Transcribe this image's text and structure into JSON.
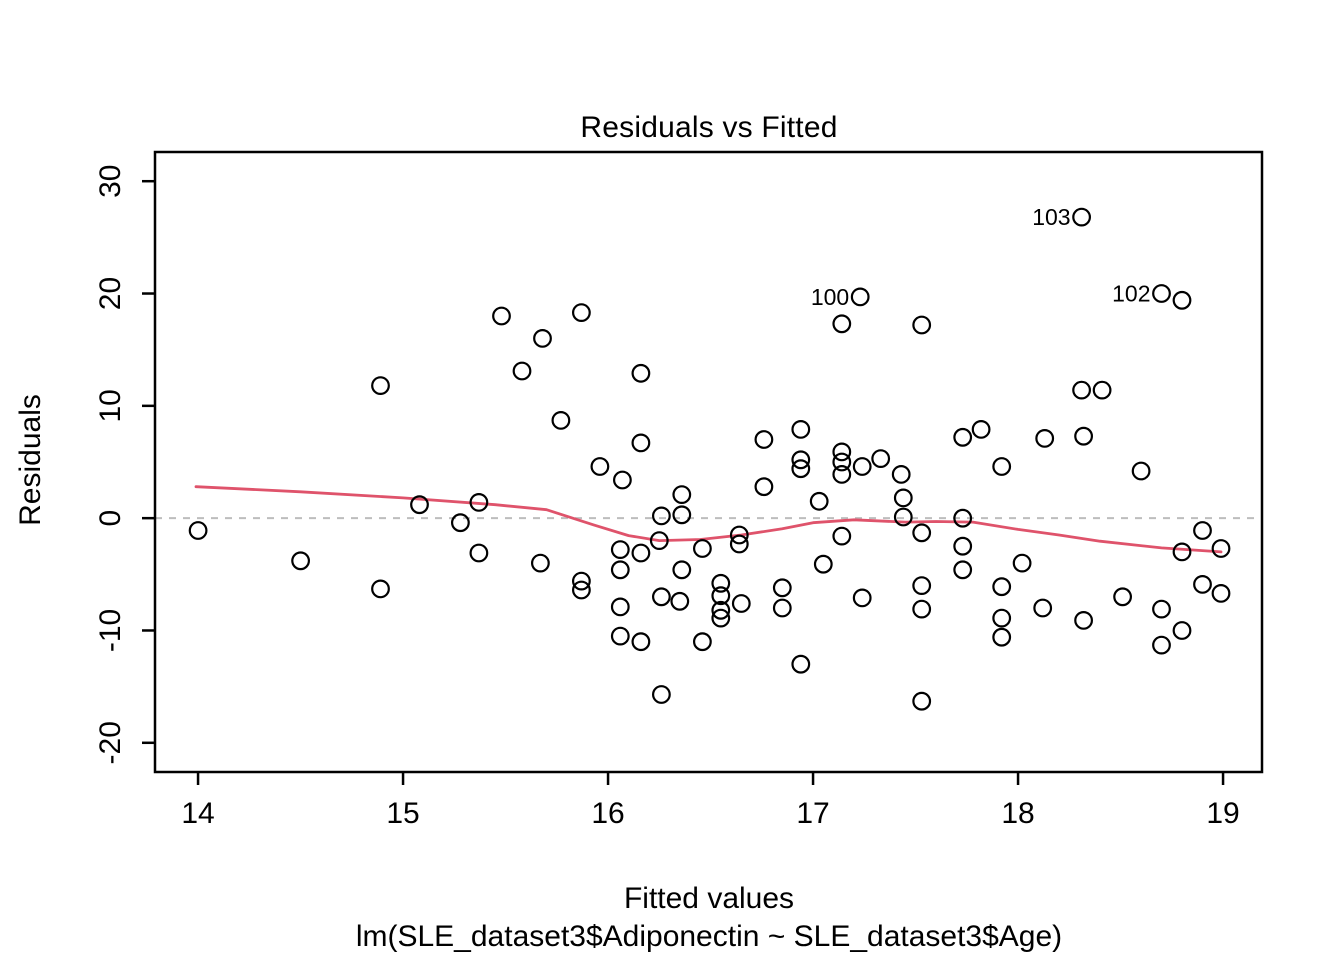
{
  "figure": {
    "title": "Residuals vs Fitted",
    "x_axis_label": "Fitted values",
    "x_axis_sublabel": "lm(SLE_dataset3$Adiponectin ~ SLE_dataset3$Age)",
    "y_axis_label": "Residuals"
  },
  "chart_data": {
    "type": "scatter",
    "title": "Residuals vs Fitted",
    "xlabel": "Fitted values",
    "xlabel_line2": "lm(SLE_dataset3$Adiponectin ~ SLE_dataset3$Age)",
    "ylabel": "Residuals",
    "xlim": [
      13.79,
      19.19
    ],
    "ylim": [
      -22.6,
      32.6
    ],
    "x_ticks": [
      14,
      15,
      16,
      17,
      18,
      19
    ],
    "y_ticks": [
      -20,
      -10,
      0,
      10,
      20,
      30
    ],
    "grid": false,
    "legend": false,
    "point_style": {
      "shape": "open-circle",
      "stroke_color": "#000000"
    },
    "zero_line": {
      "y": 0,
      "style": "dashed",
      "color": "#bdbdbd"
    },
    "points": [
      [
        14.0,
        -1.1
      ],
      [
        14.5,
        -3.8
      ],
      [
        14.89,
        11.8
      ],
      [
        14.89,
        -6.3
      ],
      [
        15.08,
        1.2
      ],
      [
        15.28,
        -0.4
      ],
      [
        15.37,
        1.4
      ],
      [
        15.37,
        -3.1
      ],
      [
        15.48,
        18.0
      ],
      [
        15.58,
        13.1
      ],
      [
        15.67,
        -4.0
      ],
      [
        15.68,
        16.0
      ],
      [
        15.77,
        8.7
      ],
      [
        15.87,
        18.3
      ],
      [
        15.87,
        -5.6
      ],
      [
        15.87,
        -6.4
      ],
      [
        15.96,
        4.6
      ],
      [
        16.06,
        -2.8
      ],
      [
        16.06,
        -4.6
      ],
      [
        16.06,
        -7.9
      ],
      [
        16.06,
        -10.5
      ],
      [
        16.07,
        3.4
      ],
      [
        16.16,
        12.9
      ],
      [
        16.16,
        6.7
      ],
      [
        16.16,
        -3.1
      ],
      [
        16.16,
        -11.0
      ],
      [
        16.25,
        -2.0
      ],
      [
        16.26,
        0.2
      ],
      [
        16.26,
        -7.0
      ],
      [
        16.26,
        -15.7
      ],
      [
        16.35,
        -7.4
      ],
      [
        16.36,
        2.1
      ],
      [
        16.36,
        0.3
      ],
      [
        16.36,
        -4.6
      ],
      [
        16.46,
        -2.7
      ],
      [
        16.46,
        -11.0
      ],
      [
        16.55,
        -5.8
      ],
      [
        16.55,
        -6.9
      ],
      [
        16.55,
        -8.2
      ],
      [
        16.55,
        -8.9
      ],
      [
        16.64,
        -1.5
      ],
      [
        16.64,
        -2.3
      ],
      [
        16.65,
        -7.6
      ],
      [
        16.76,
        2.8
      ],
      [
        16.76,
        7.0
      ],
      [
        16.85,
        -6.2
      ],
      [
        16.85,
        -8.0
      ],
      [
        16.94,
        7.9
      ],
      [
        16.94,
        5.2
      ],
      [
        16.94,
        4.4
      ],
      [
        16.94,
        -13.0
      ],
      [
        17.03,
        1.5
      ],
      [
        17.05,
        -4.1
      ],
      [
        17.14,
        17.3
      ],
      [
        17.14,
        5.9
      ],
      [
        17.14,
        5.0
      ],
      [
        17.14,
        3.9
      ],
      [
        17.14,
        -1.6
      ],
      [
        17.24,
        4.6
      ],
      [
        17.24,
        -7.1
      ],
      [
        17.33,
        5.3
      ],
      [
        17.43,
        3.9
      ],
      [
        17.44,
        1.8
      ],
      [
        17.44,
        0.1
      ],
      [
        17.53,
        17.2
      ],
      [
        17.53,
        -1.3
      ],
      [
        17.53,
        -6.0
      ],
      [
        17.53,
        -8.1
      ],
      [
        17.53,
        -16.3
      ],
      [
        17.73,
        7.2
      ],
      [
        17.73,
        0.0
      ],
      [
        17.73,
        -2.5
      ],
      [
        17.73,
        -4.6
      ],
      [
        17.82,
        7.9
      ],
      [
        17.92,
        4.6
      ],
      [
        17.92,
        -6.1
      ],
      [
        17.92,
        -8.9
      ],
      [
        17.92,
        -10.6
      ],
      [
        18.02,
        -4.0
      ],
      [
        18.12,
        -8.0
      ],
      [
        18.13,
        7.1
      ],
      [
        18.31,
        11.4
      ],
      [
        18.32,
        7.3
      ],
      [
        18.32,
        -9.1
      ],
      [
        18.41,
        11.4
      ],
      [
        18.51,
        -7.0
      ],
      [
        18.6,
        4.2
      ],
      [
        18.7,
        -8.1
      ],
      [
        18.7,
        -11.3
      ],
      [
        18.8,
        19.4
      ],
      [
        18.8,
        -10.0
      ],
      [
        18.8,
        -3.0
      ],
      [
        18.9,
        -5.9
      ],
      [
        18.9,
        -1.1
      ],
      [
        18.99,
        -6.7
      ],
      [
        18.99,
        -2.7
      ]
    ],
    "labeled_points": [
      {
        "label": "100",
        "x": 17.23,
        "y": 19.7,
        "label_side": "left"
      },
      {
        "label": "102",
        "x": 18.7,
        "y": 20.0,
        "label_side": "left"
      },
      {
        "label": "103",
        "x": 18.31,
        "y": 26.8,
        "label_side": "left"
      }
    ],
    "smoother": {
      "color": "#DF536B",
      "points": [
        [
          13.99,
          2.8
        ],
        [
          14.5,
          2.35
        ],
        [
          15.0,
          1.8
        ],
        [
          15.45,
          1.2
        ],
        [
          15.7,
          0.75
        ],
        [
          15.93,
          -0.6
        ],
        [
          16.1,
          -1.55
        ],
        [
          16.25,
          -2.0
        ],
        [
          16.45,
          -1.9
        ],
        [
          16.65,
          -1.5
        ],
        [
          16.85,
          -0.95
        ],
        [
          17.0,
          -0.4
        ],
        [
          17.2,
          -0.15
        ],
        [
          17.45,
          -0.35
        ],
        [
          17.6,
          -0.3
        ],
        [
          17.78,
          -0.35
        ],
        [
          18.0,
          -1.0
        ],
        [
          18.2,
          -1.5
        ],
        [
          18.4,
          -2.05
        ],
        [
          18.7,
          -2.65
        ],
        [
          18.99,
          -3.0
        ]
      ]
    }
  }
}
